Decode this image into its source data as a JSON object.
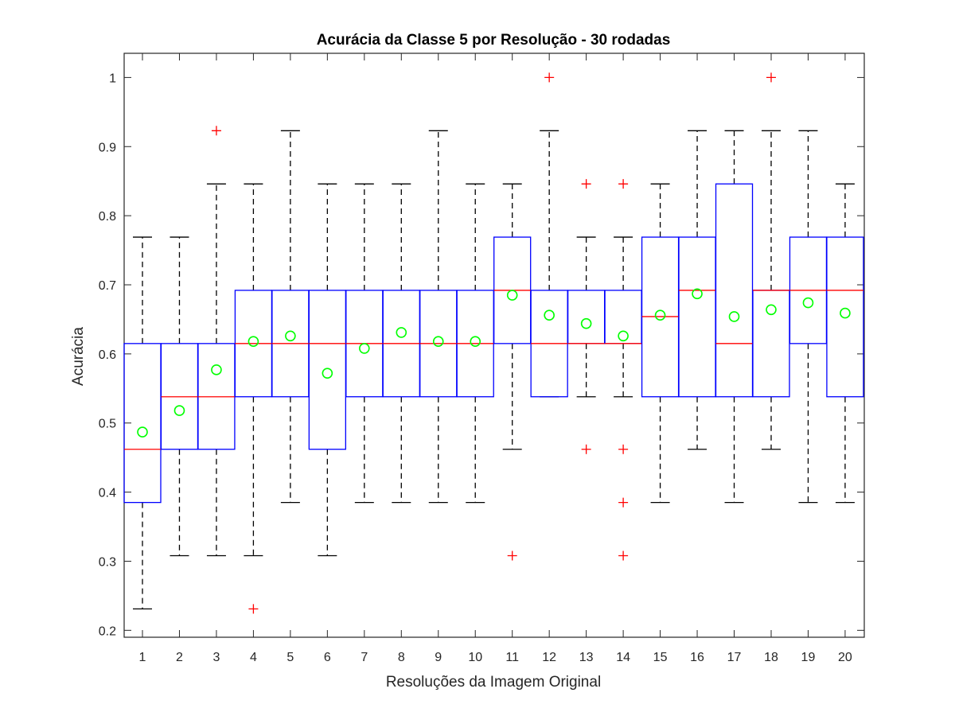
{
  "chart_data": {
    "type": "boxplot",
    "title": "Acurácia da Classe 5 por Resolução - 30 rodadas",
    "xlabel": "Resoluções da Imagem Original",
    "ylabel": "Acurácia",
    "ylim": [
      0.19,
      1.035
    ],
    "yticks": [
      0.2,
      0.3,
      0.4,
      0.5,
      0.6,
      0.7,
      0.8,
      0.9,
      1
    ],
    "ytick_labels": [
      "0.2",
      "0.3",
      "0.4",
      "0.5",
      "0.6",
      "0.7",
      "0.8",
      "0.9",
      "1"
    ],
    "categories": [
      "1",
      "2",
      "3",
      "4",
      "5",
      "6",
      "7",
      "8",
      "9",
      "10",
      "11",
      "12",
      "13",
      "14",
      "15",
      "16",
      "17",
      "18",
      "19",
      "20"
    ],
    "grid": false,
    "colors": {
      "box": "#0000ff",
      "median": "#ff0000",
      "whisker": "#000000",
      "outlier": "#ff0000",
      "mean": "#00ff00"
    },
    "boxes": [
      {
        "q1": 0.385,
        "median": 0.462,
        "q3": 0.615,
        "whisker_low": 0.231,
        "whisker_high": 0.769,
        "mean": 0.487,
        "outliers": []
      },
      {
        "q1": 0.462,
        "median": 0.538,
        "q3": 0.615,
        "whisker_low": 0.308,
        "whisker_high": 0.769,
        "mean": 0.518,
        "outliers": []
      },
      {
        "q1": 0.462,
        "median": 0.538,
        "q3": 0.615,
        "whisker_low": 0.308,
        "whisker_high": 0.846,
        "mean": 0.577,
        "outliers": [
          0.923
        ]
      },
      {
        "q1": 0.538,
        "median": 0.615,
        "q3": 0.692,
        "whisker_low": 0.308,
        "whisker_high": 0.846,
        "mean": 0.618,
        "outliers": [
          0.231
        ]
      },
      {
        "q1": 0.538,
        "median": 0.615,
        "q3": 0.692,
        "whisker_low": 0.385,
        "whisker_high": 0.923,
        "mean": 0.626,
        "outliers": []
      },
      {
        "q1": 0.462,
        "median": 0.615,
        "q3": 0.692,
        "whisker_low": 0.308,
        "whisker_high": 0.846,
        "mean": 0.572,
        "outliers": []
      },
      {
        "q1": 0.538,
        "median": 0.615,
        "q3": 0.692,
        "whisker_low": 0.385,
        "whisker_high": 0.846,
        "mean": 0.608,
        "outliers": []
      },
      {
        "q1": 0.538,
        "median": 0.615,
        "q3": 0.692,
        "whisker_low": 0.385,
        "whisker_high": 0.846,
        "mean": 0.631,
        "outliers": []
      },
      {
        "q1": 0.538,
        "median": 0.615,
        "q3": 0.692,
        "whisker_low": 0.385,
        "whisker_high": 0.923,
        "mean": 0.618,
        "outliers": []
      },
      {
        "q1": 0.538,
        "median": 0.615,
        "q3": 0.692,
        "whisker_low": 0.385,
        "whisker_high": 0.846,
        "mean": 0.618,
        "outliers": []
      },
      {
        "q1": 0.615,
        "median": 0.692,
        "q3": 0.769,
        "whisker_low": 0.462,
        "whisker_high": 0.846,
        "mean": 0.685,
        "outliers": [
          0.308
        ]
      },
      {
        "q1": 0.538,
        "median": 0.615,
        "q3": 0.692,
        "whisker_low": 0.538,
        "whisker_high": 0.923,
        "mean": 0.656,
        "outliers": [
          1.0
        ]
      },
      {
        "q1": 0.615,
        "median": 0.615,
        "q3": 0.692,
        "whisker_low": 0.538,
        "whisker_high": 0.769,
        "mean": 0.644,
        "outliers": [
          0.846,
          0.462
        ]
      },
      {
        "q1": 0.615,
        "median": 0.615,
        "q3": 0.692,
        "whisker_low": 0.538,
        "whisker_high": 0.769,
        "mean": 0.626,
        "outliers": [
          0.846,
          0.462,
          0.385,
          0.308
        ]
      },
      {
        "q1": 0.538,
        "median": 0.654,
        "q3": 0.769,
        "whisker_low": 0.385,
        "whisker_high": 0.846,
        "mean": 0.656,
        "outliers": []
      },
      {
        "q1": 0.538,
        "median": 0.692,
        "q3": 0.769,
        "whisker_low": 0.462,
        "whisker_high": 0.923,
        "mean": 0.687,
        "outliers": []
      },
      {
        "q1": 0.538,
        "median": 0.615,
        "q3": 0.846,
        "whisker_low": 0.385,
        "whisker_high": 0.923,
        "mean": 0.654,
        "outliers": []
      },
      {
        "q1": 0.538,
        "median": 0.692,
        "q3": 0.692,
        "whisker_low": 0.462,
        "whisker_high": 0.923,
        "mean": 0.664,
        "outliers": [
          1.0
        ]
      },
      {
        "q1": 0.615,
        "median": 0.692,
        "q3": 0.769,
        "whisker_low": 0.385,
        "whisker_high": 0.923,
        "mean": 0.674,
        "outliers": []
      },
      {
        "q1": 0.538,
        "median": 0.692,
        "q3": 0.769,
        "whisker_low": 0.385,
        "whisker_high": 0.846,
        "mean": 0.659,
        "outliers": []
      }
    ]
  }
}
